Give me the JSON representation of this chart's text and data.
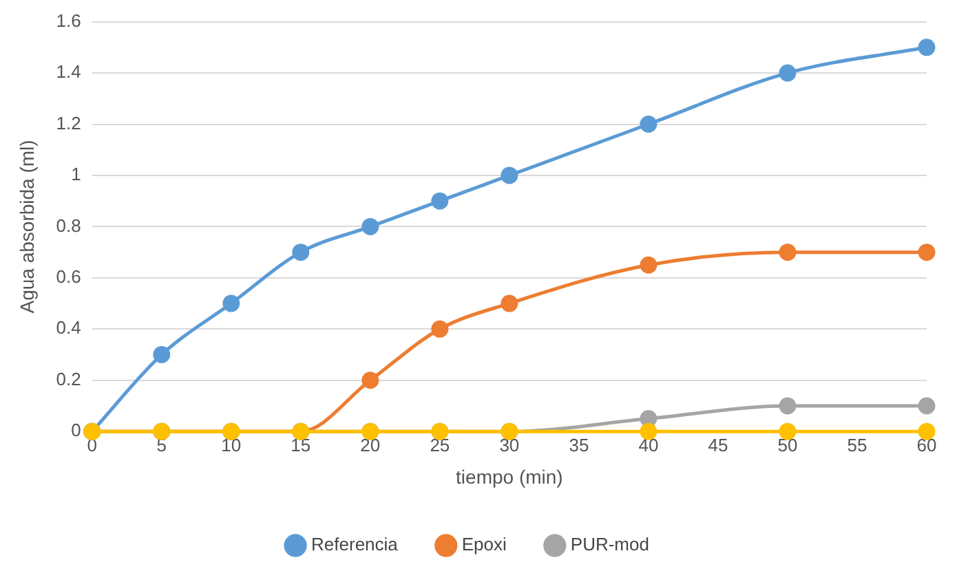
{
  "chart_data": {
    "type": "line",
    "xlabel": "tiempo (min)",
    "ylabel": "Agua absorbida (ml)",
    "x": [
      0,
      5,
      10,
      15,
      20,
      25,
      30,
      40,
      50,
      60
    ],
    "series": [
      {
        "name": "Referencia",
        "color": "#5b9bd5",
        "values": [
          0,
          0.3,
          0.5,
          0.7,
          0.8,
          0.9,
          1.0,
          1.2,
          1.4,
          1.5
        ]
      },
      {
        "name": "Epoxi",
        "color": "#ed7d31",
        "values": [
          0,
          0,
          0,
          0,
          0.2,
          0.4,
          0.5,
          0.65,
          0.7,
          0.7
        ]
      },
      {
        "name": "PUR-mod",
        "color": "#a5a5a5",
        "values": [
          0,
          0,
          0,
          0,
          0,
          0,
          0,
          0.05,
          0.1,
          0.1
        ]
      },
      {
        "color": "#ffc000",
        "values": [
          0,
          0,
          0,
          0,
          0,
          0,
          0,
          0,
          0,
          0
        ]
      }
    ],
    "xlim": [
      0,
      60
    ],
    "xticks": [
      0,
      5,
      10,
      15,
      20,
      25,
      30,
      35,
      40,
      45,
      50,
      55,
      60
    ],
    "ylim": [
      0,
      1.6
    ],
    "yticks": [
      0,
      0.2,
      0.4,
      0.6,
      0.8,
      1,
      1.2,
      1.4,
      1.6
    ],
    "grid": "y",
    "legend": "bottom",
    "marker": "circle",
    "line_style": "solid"
  }
}
